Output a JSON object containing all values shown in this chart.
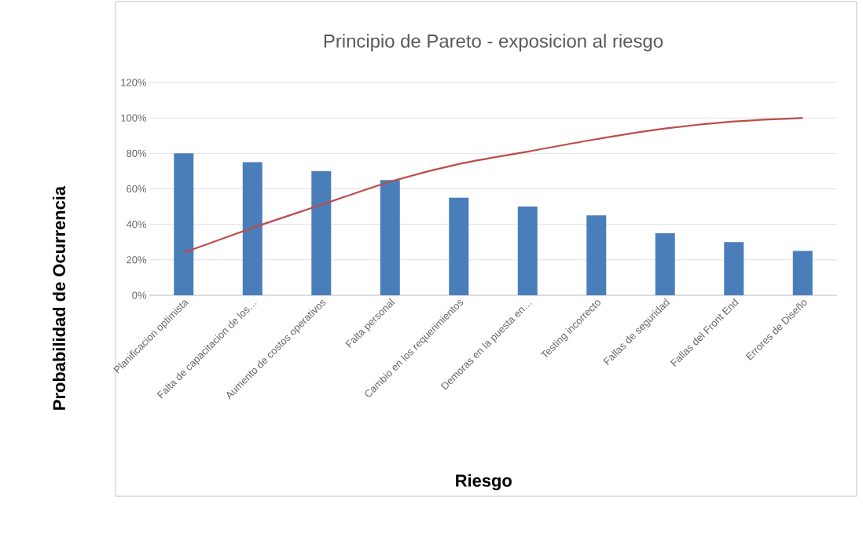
{
  "chart_data": {
    "type": "bar",
    "title": "Principio de Pareto - exposicion al riesgo",
    "xlabel": "Riesgo",
    "ylabel": "Probabilidad de Ocurrencia",
    "categories": [
      "Planificacion optimista",
      "Falta de capacitacion de los…",
      "Aumento de costos operativos",
      "Falta personal",
      "Cambio en los requerimientos",
      "Demoras en la puesta en…",
      "Testing incorrecto",
      "Fallas de seguridad",
      "Fallas del Front End",
      "Errores de Diseño"
    ],
    "series": [
      {
        "color": "#4a7ebb",
        "values": [
          80,
          75,
          70,
          65,
          55,
          50,
          45,
          35,
          30,
          25
        ]
      },
      {
        "type": "line",
        "color": "#be4b48",
        "values": [
          24,
          38,
          51,
          64,
          74,
          81,
          88,
          94,
          98,
          100
        ]
      }
    ],
    "ylim": [
      0,
      120
    ],
    "yticks": [
      {
        "value": 0,
        "label": "0%"
      },
      {
        "value": 20,
        "label": "20%"
      },
      {
        "value": 40,
        "label": "40%"
      },
      {
        "value": 60,
        "label": "60%"
      },
      {
        "value": 80,
        "label": "80%"
      },
      {
        "value": 100,
        "label": "100%"
      },
      {
        "value": 120,
        "label": "120%"
      }
    ],
    "grid": "y"
  }
}
